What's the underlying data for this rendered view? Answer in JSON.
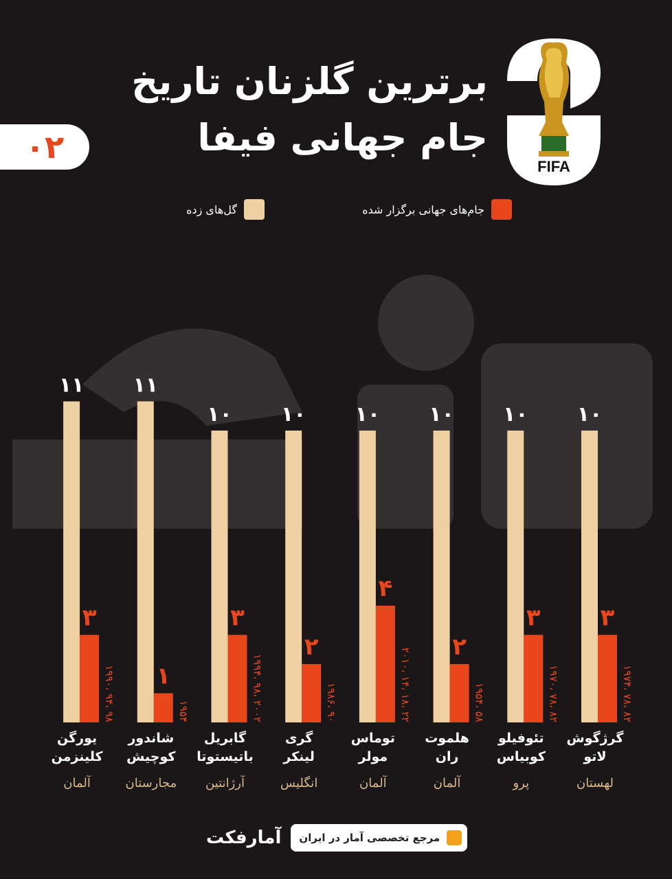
{
  "page_number": "۰۲",
  "title_line1": "برترین گلزنان تاریخ",
  "title_line2": "جام جهانی فیفا",
  "logo": {
    "text": "FIFA",
    "icon": "world-cup-trophy-icon"
  },
  "legend": {
    "world_cups_label": "جام‌های جهانی برگزار شده",
    "goals_label": "گل‌های زده"
  },
  "colors": {
    "background": "#1b1718",
    "goals": "#efd0a2",
    "cups": "#e8461c",
    "country": "#d9b98c"
  },
  "watermark": "آمارفکت",
  "chart_data": {
    "type": "bar",
    "series": [
      {
        "name": "گل‌های زده",
        "values": [
          10,
          10,
          10,
          10,
          10,
          10,
          11,
          11
        ]
      },
      {
        "name": "جام‌های جهانی برگزار شده",
        "values": [
          3,
          3,
          2,
          4,
          2,
          3,
          1,
          3
        ]
      }
    ],
    "goal_labels": [
      "۱۰",
      "۱۰",
      "۱۰",
      "۱۰",
      "۱۰",
      "۱۰",
      "۱۱",
      "۱۱"
    ],
    "cup_labels": [
      "۳",
      "۳",
      "۲",
      "۴",
      "۲",
      "۳",
      "۱",
      "۳"
    ],
    "year_labels": [
      "۱۹۷۴، ۷۸، ۸۲",
      "۱۹۷۰، ۷۸، ۸۲",
      "۱۹۵۴، ۵۸",
      "۲۰۱۰، ۱۴، ۱۸، ۲۲",
      "۱۹۸۶، ۹۰",
      "۱۹۹۴، ۹۸، ۲۰۰۲",
      "۱۹۵۴",
      "۱۹۹۰، ۹۴، ۹۸"
    ],
    "players": [
      {
        "name1": "گرژگوش",
        "name2": "لاتو",
        "country": "لهستان"
      },
      {
        "name1": "تئوفیلو",
        "name2": "کوبیاس",
        "country": "پرو"
      },
      {
        "name1": "هلموت",
        "name2": "ران",
        "country": "آلمان"
      },
      {
        "name1": "توماس",
        "name2": "مولر",
        "country": "آلمان"
      },
      {
        "name1": "گری",
        "name2": "لینکر",
        "country": "انگلیس"
      },
      {
        "name1": "گابریل",
        "name2": "باتیستوتا",
        "country": "آرژانتین"
      },
      {
        "name1": "شاندور",
        "name2": "کوچیش",
        "country": "مجارستان"
      },
      {
        "name1": "یورگن",
        "name2": "کلینزمن",
        "country": "آلمان"
      }
    ]
  },
  "footer": {
    "brand": "آمارفکت",
    "tagline": "مرجع تخصصی آمار در ایران"
  }
}
